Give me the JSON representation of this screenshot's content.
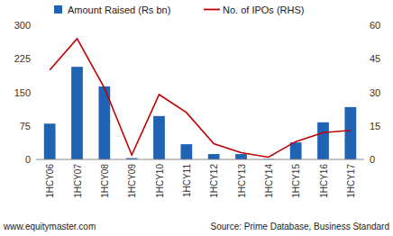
{
  "chart_data": {
    "type": "bar",
    "categories": [
      "1HCY06",
      "1HCY07",
      "1HCY08",
      "1HCY09",
      "1HCY10",
      "1HCY11",
      "1HCY12",
      "1HCY13",
      "1HCY14",
      "1HCY15",
      "1HCY16",
      "1HCY17"
    ],
    "series": [
      {
        "name": "Amount Raised (Rs bn)",
        "type": "bar",
        "color": "#1f63b5",
        "values": [
          80,
          207,
          163,
          3,
          97,
          34,
          12,
          12,
          1,
          38,
          83,
          117
        ]
      },
      {
        "name": "No. of IPOs (RHS)",
        "type": "line",
        "axis": "y2",
        "color": "#c00000",
        "values": [
          40,
          54,
          32,
          2,
          29,
          21,
          7,
          3,
          1,
          8,
          12,
          13
        ]
      }
    ],
    "ylim": [
      0,
      300
    ],
    "yticks": [
      0,
      75,
      150,
      225,
      300
    ],
    "y2lim": [
      0,
      60
    ],
    "y2ticks": [
      0,
      15,
      30,
      45,
      60
    ],
    "grid": false,
    "legend": "top",
    "website": "www.equitymaster.com",
    "source": "Source: Prime Database, Business Standard"
  }
}
